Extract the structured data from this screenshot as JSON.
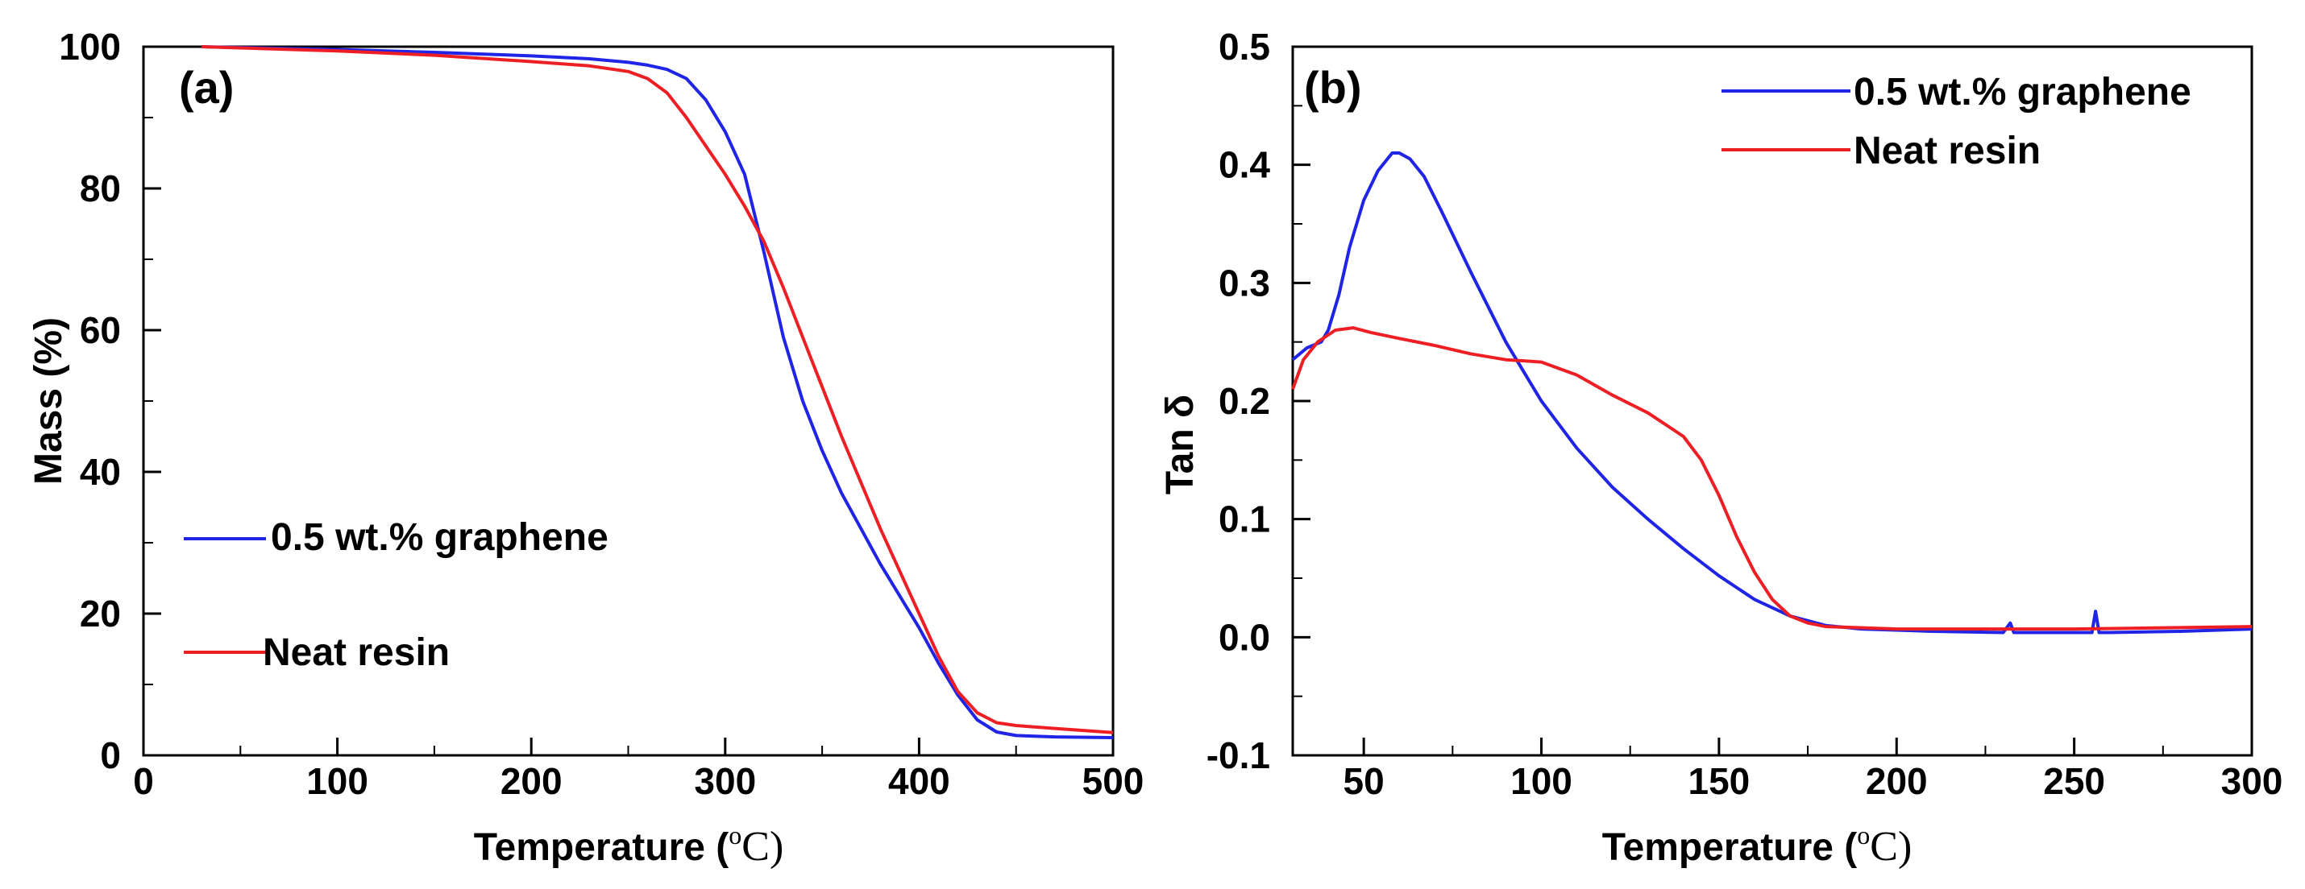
{
  "chart_data": [
    {
      "type": "line",
      "panel_label": "(a)",
      "xlabel": "Temperature (",
      "xunit_sup": "o",
      "xunit": "C)",
      "ylabel": "Mass (%)",
      "xlim": [
        0,
        500
      ],
      "ylim": [
        0,
        100
      ],
      "xticks": [
        0,
        100,
        200,
        300,
        400,
        500
      ],
      "yticks": [
        0,
        20,
        40,
        60,
        80,
        100
      ],
      "legend_position": "middle-left",
      "series": [
        {
          "name": "0.5 wt.% graphene",
          "color": "#1f24e6",
          "x": [
            30,
            100,
            150,
            200,
            230,
            250,
            260,
            270,
            280,
            290,
            300,
            310,
            320,
            330,
            340,
            350,
            360,
            380,
            400,
            410,
            420,
            430,
            440,
            450,
            470,
            500
          ],
          "y": [
            100,
            99.6,
            99.2,
            98.7,
            98.3,
            97.8,
            97.4,
            96.8,
            95.5,
            92.5,
            88,
            82,
            71,
            59,
            50,
            43,
            37,
            27,
            18,
            13,
            8.5,
            5,
            3.3,
            2.8,
            2.6,
            2.5
          ]
        },
        {
          "name": "Neat resin",
          "color": "#ee1f24",
          "x": [
            30,
            100,
            150,
            200,
            230,
            250,
            260,
            270,
            280,
            290,
            300,
            310,
            320,
            330,
            340,
            350,
            360,
            380,
            400,
            410,
            420,
            430,
            440,
            450,
            470,
            500
          ],
          "y": [
            100,
            99.4,
            98.8,
            97.9,
            97.3,
            96.5,
            95.5,
            93.5,
            90,
            86,
            82,
            77.5,
            72.5,
            66,
            59,
            52,
            45,
            32,
            20,
            14,
            9,
            6,
            4.6,
            4.2,
            3.8,
            3.2
          ]
        }
      ]
    },
    {
      "type": "line",
      "panel_label": "(b)",
      "xlabel": "Temperature (",
      "xunit_sup": "o",
      "xunit": "C)",
      "ylabel": "Tan δ",
      "xlim": [
        30,
        300
      ],
      "ylim": [
        -0.1,
        0.5
      ],
      "xticks": [
        50,
        100,
        150,
        200,
        250,
        300
      ],
      "yticks": [
        -0.1,
        0.0,
        0.1,
        0.2,
        0.3,
        0.4,
        0.5
      ],
      "ytick_labels": [
        "-0.1",
        "0.0",
        "0.1",
        "0.2",
        "0.3",
        "0.4",
        "0.5"
      ],
      "legend_position": "top-right",
      "series": [
        {
          "name": "0.5 wt.% graphene",
          "color": "#1f24e6",
          "x": [
            30,
            34,
            38,
            40,
            43,
            46,
            50,
            54,
            58,
            60,
            63,
            67,
            72,
            80,
            90,
            100,
            110,
            120,
            130,
            140,
            150,
            160,
            170,
            180,
            190,
            200,
            210,
            230,
            232,
            233,
            250,
            255,
            256,
            257,
            258,
            260,
            280,
            300
          ],
          "y": [
            0.235,
            0.245,
            0.25,
            0.26,
            0.29,
            0.33,
            0.37,
            0.395,
            0.41,
            0.41,
            0.405,
            0.39,
            0.36,
            0.31,
            0.25,
            0.2,
            0.16,
            0.127,
            0.1,
            0.075,
            0.052,
            0.032,
            0.018,
            0.01,
            0.007,
            0.006,
            0.005,
            0.004,
            0.012,
            0.004,
            0.004,
            0.004,
            0.022,
            0.004,
            0.004,
            0.004,
            0.005,
            0.007
          ]
        },
        {
          "name": "Neat resin",
          "color": "#ee1f24",
          "x": [
            30,
            33,
            37,
            42,
            47,
            52,
            60,
            70,
            80,
            90,
            100,
            110,
            120,
            130,
            140,
            145,
            150,
            155,
            160,
            165,
            170,
            175,
            180,
            200,
            250,
            300
          ],
          "y": [
            0.21,
            0.235,
            0.25,
            0.26,
            0.262,
            0.258,
            0.253,
            0.247,
            0.24,
            0.235,
            0.233,
            0.222,
            0.205,
            0.19,
            0.17,
            0.15,
            0.12,
            0.085,
            0.055,
            0.032,
            0.018,
            0.012,
            0.009,
            0.007,
            0.007,
            0.009
          ]
        }
      ]
    }
  ]
}
